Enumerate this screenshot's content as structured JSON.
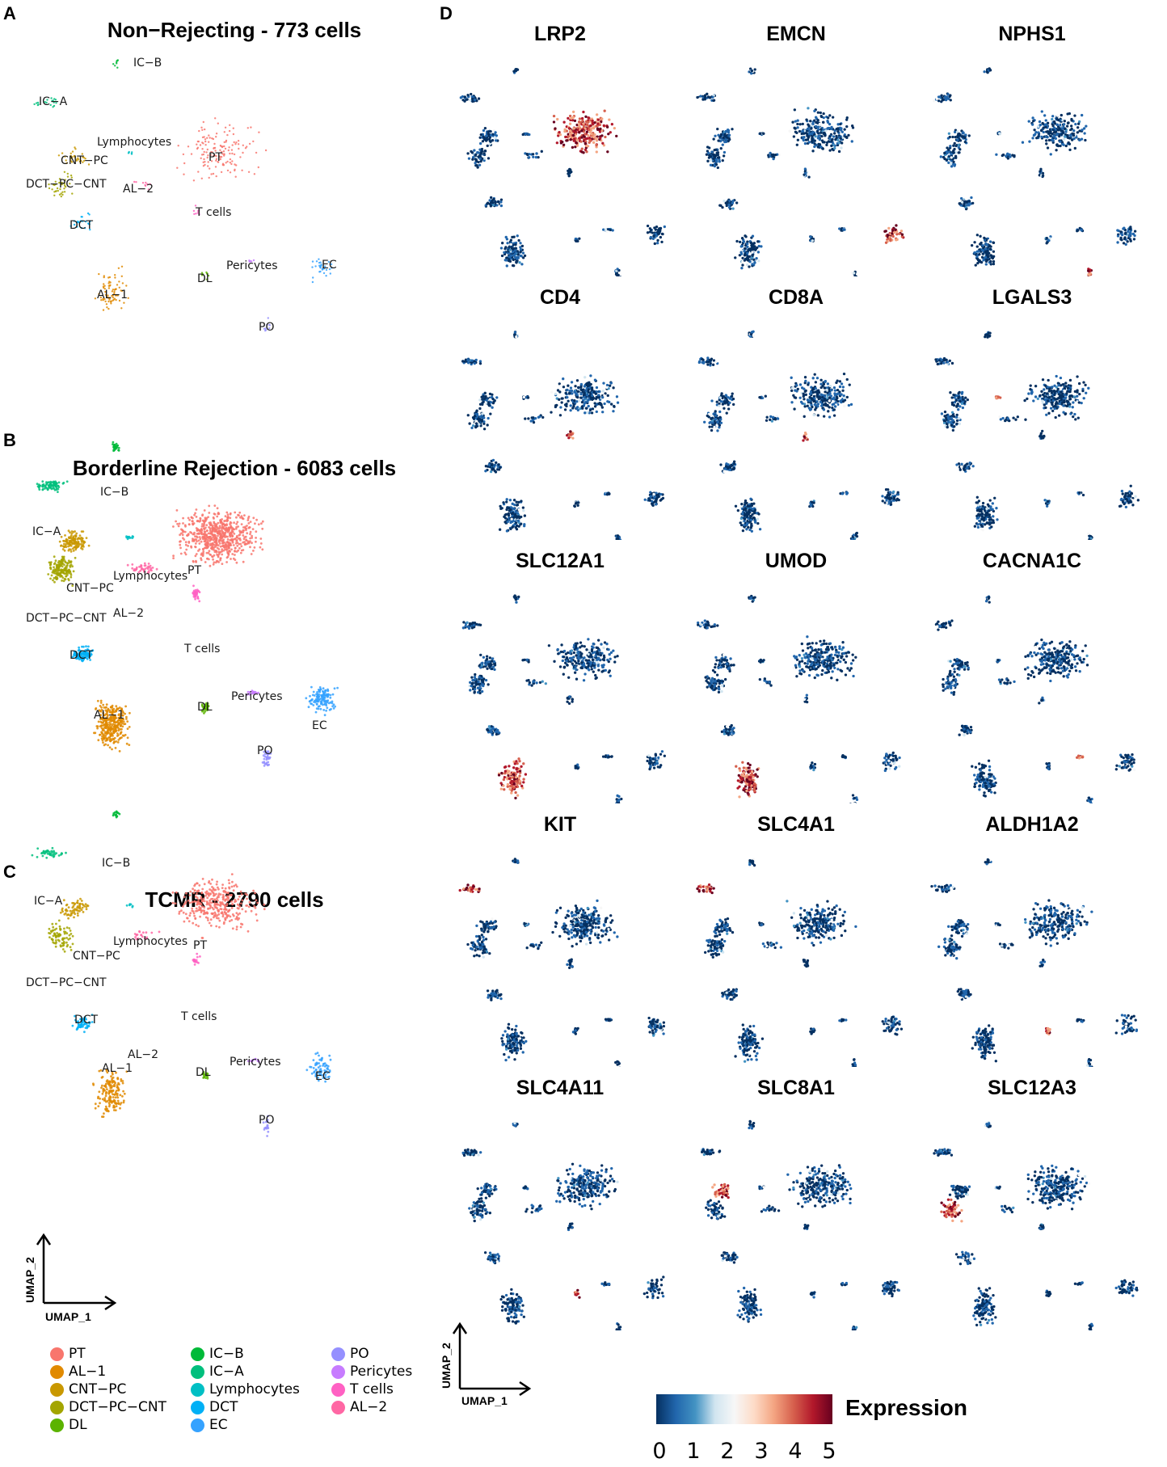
{
  "panels": {
    "a": {
      "letter": "A",
      "title": "Non−Rejecting - 773 cells"
    },
    "b": {
      "letter": "B",
      "title": "Borderline Rejection - 6083 cells"
    },
    "c": {
      "letter": "C",
      "title": "TCMR - 2790 cells"
    },
    "d": {
      "letter": "D"
    }
  },
  "axes": {
    "x": "UMAP_1",
    "y": "UMAP_2"
  },
  "chart_data": [
    {
      "type": "scatter",
      "title": "Non−Rejecting - 773 cells",
      "xlabel": "UMAP_1",
      "ylabel": "UMAP_2",
      "cell_count": 773,
      "cluster_labels": [
        "IC−B",
        "IC−A",
        "Lymphocytes",
        "CNT−PC",
        "PT",
        "DCT−PC−CNT",
        "AL−2",
        "T cells",
        "DCT",
        "Pericytes",
        "EC",
        "DL",
        "AL−1",
        "PO"
      ]
    },
    {
      "type": "scatter",
      "title": "Borderline Rejection - 6083 cells",
      "xlabel": "UMAP_1",
      "ylabel": "UMAP_2",
      "cell_count": 6083,
      "cluster_labels": [
        "IC−B",
        "IC−A",
        "Lymphocytes",
        "PT",
        "CNT−PC",
        "AL−2",
        "DCT−PC−CNT",
        "T cells",
        "DCT",
        "Pericytes",
        "EC",
        "DL",
        "AL−1",
        "PO"
      ]
    },
    {
      "type": "scatter",
      "title": "TCMR - 2790 cells",
      "xlabel": "UMAP_1",
      "ylabel": "UMAP_2",
      "cell_count": 2790,
      "cluster_labels": [
        "IC−B",
        "IC−A",
        "Lymphocytes",
        "PT",
        "CNT−PC",
        "DCT−PC−CNT",
        "DCT",
        "T cells",
        "AL−2",
        "AL−1",
        "Pericytes",
        "DL",
        "EC",
        "PO"
      ]
    },
    {
      "type": "heatmap",
      "description_kind": "feature_plot_grid",
      "genes": [
        "LRP2",
        "EMCN",
        "NPHS1",
        "CD4",
        "CD8A",
        "LGALS3",
        "SLC12A1",
        "UMOD",
        "CACNA1C",
        "KIT",
        "SLC4A1",
        "ALDH1A2",
        "SLC4A11",
        "SLC8A1",
        "SLC12A3"
      ],
      "colorbar": {
        "title": "Expression",
        "min": 0,
        "max": 5,
        "ticks": [
          "0",
          "1",
          "2",
          "3",
          "4",
          "5"
        ]
      },
      "xlabel": "UMAP_1",
      "ylabel": "UMAP_2"
    }
  ],
  "legend": {
    "items": [
      {
        "label": "PT",
        "color": "#F8766D"
      },
      {
        "label": "AL−1",
        "color": "#E18A00"
      },
      {
        "label": "CNT−PC",
        "color": "#C99800"
      },
      {
        "label": "DCT−PC−CNT",
        "color": "#A3A500"
      },
      {
        "label": "DL",
        "color": "#5BB300"
      },
      {
        "label": "IC−B",
        "color": "#00BA38"
      },
      {
        "label": "IC−A",
        "color": "#00BF7D"
      },
      {
        "label": "Lymphocytes",
        "color": "#00BFC4"
      },
      {
        "label": "DCT",
        "color": "#00B0F6"
      },
      {
        "label": "EC",
        "color": "#35A2FF"
      },
      {
        "label": "PO",
        "color": "#9590FF"
      },
      {
        "label": "Pericytes",
        "color": "#C77CFF"
      },
      {
        "label": "T cells",
        "color": "#FF61C3"
      },
      {
        "label": "AL−2",
        "color": "#FF67A4"
      }
    ]
  },
  "colorbar": {
    "title": "Expression",
    "ticks": [
      "0",
      "1",
      "2",
      "3",
      "4",
      "5"
    ],
    "colors": [
      "#053061",
      "#2166AC",
      "#4393C3",
      "#D1E5F0",
      "#F7F7F7",
      "#FDDBC7",
      "#F4A582",
      "#D6604D",
      "#B2182B",
      "#67001F"
    ]
  }
}
